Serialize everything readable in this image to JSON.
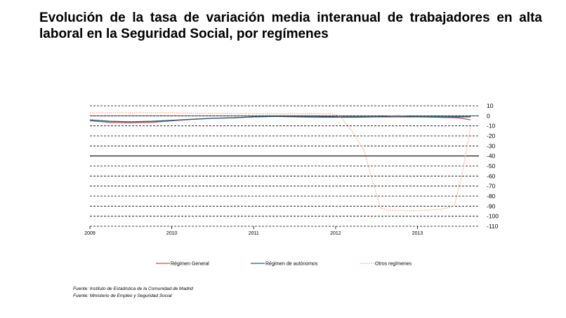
{
  "title": "Evolución de la tasa de variación media interanual de trabajadores en alta laboral en la Seguridad Social, por  regímenes",
  "sources": [
    "Fuente: Instituto de Estadística de la Comunidad de Madrid",
    "Fuente: Ministerio de Empleo y Seguridad Social"
  ],
  "chart_data": {
    "type": "line",
    "title": "Evolución de la tasa de variación media interanual de trabajadores en alta laboral en la Seguridad Social, por  regímenes",
    "xlabel": "",
    "ylabel": "",
    "x_ticks": [
      "2009",
      "2010",
      "2011",
      "2012",
      "2013"
    ],
    "xlim": [
      2009,
      2013.75
    ],
    "ylim": [
      -110,
      10
    ],
    "y_ticks": [
      10,
      0,
      -10,
      -20,
      -30,
      -40,
      -50,
      -60,
      -70,
      -80,
      -90,
      -100,
      -110
    ],
    "y_axis_side": "right",
    "grid": "horizontal dashed",
    "legend_position": "bottom",
    "series": [
      {
        "name": "Régimen General",
        "color": "#c0504d",
        "style": "solid",
        "x": [
          2009,
          2009.25,
          2009.5,
          2009.75,
          2010,
          2010.25,
          2010.5,
          2010.75,
          2011,
          2011.25,
          2011.5,
          2011.75,
          2012,
          2012.25,
          2012.5,
          2012.75,
          2013,
          2013.25,
          2013.5,
          2013.65
        ],
        "values": [
          -5,
          -6.5,
          -7,
          -6.5,
          -5,
          -3.5,
          -2.5,
          -2,
          -1,
          -0.5,
          -1,
          -1.5,
          -1.5,
          -1.5,
          -1,
          0,
          -1,
          -1.5,
          -2,
          -4
        ]
      },
      {
        "name": "Régimen de autónomos",
        "color": "#1f5f7a",
        "style": "solid",
        "x": [
          2009,
          2009.25,
          2009.5,
          2009.75,
          2010,
          2010.25,
          2010.5,
          2010.75,
          2011,
          2011.25,
          2011.5,
          2011.75,
          2012,
          2012.25,
          2012.5,
          2012.75,
          2013,
          2013.25,
          2013.5,
          2013.65
        ],
        "values": [
          -4,
          -5.5,
          -6,
          -5.5,
          -4.5,
          -3.5,
          -2.5,
          -2,
          -1,
          -0.5,
          -0.5,
          -0.5,
          -1,
          -1,
          -1,
          -1,
          -1,
          -1,
          -1,
          -1
        ]
      },
      {
        "name": "Otros regímenes",
        "color": "#f4a582",
        "style": "dotted",
        "x": [
          2009,
          2009.5,
          2010,
          2010.5,
          2011,
          2011.5,
          2011.8,
          2011.95,
          2012.05,
          2012.2,
          2012.35,
          2012.45,
          2012.55,
          2012.65,
          2012.9,
          2013.1,
          2013.3,
          2013.45,
          2013.55,
          2013.65
        ],
        "values": [
          3,
          3,
          3,
          2.5,
          2,
          2,
          2,
          2,
          0,
          -15,
          -35,
          -65,
          -92,
          -94,
          -94.5,
          -94,
          -93,
          -90,
          -55,
          -10
        ]
      }
    ]
  }
}
